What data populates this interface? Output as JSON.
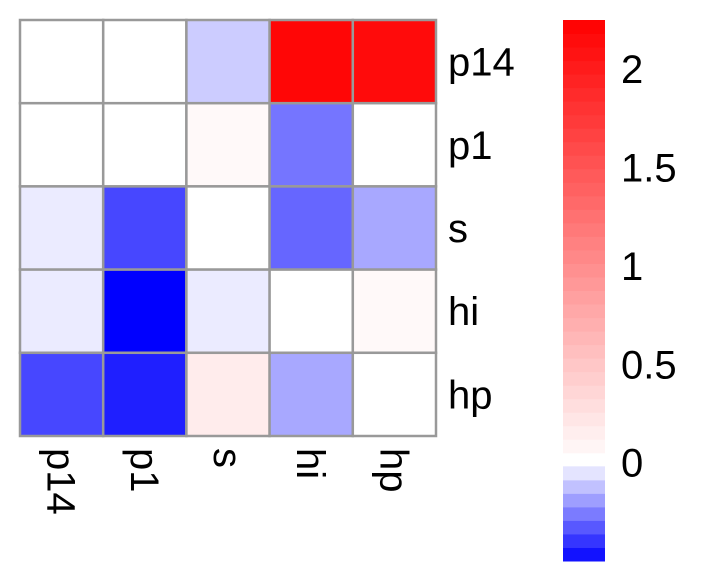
{
  "chart_data": {
    "type": "heatmap",
    "title": "",
    "xlabel": "",
    "ylabel": "",
    "rows": [
      "p14",
      "p1",
      "s",
      "hi",
      "hp"
    ],
    "columns": [
      "p14",
      "p1",
      "s",
      "hi",
      "hp"
    ],
    "values": [
      [
        0.0,
        0.0,
        -0.1,
        2.2,
        2.15
      ],
      [
        0.0,
        0.0,
        0.05,
        -0.27,
        0.0
      ],
      [
        -0.04,
        -0.36,
        0.0,
        -0.3,
        -0.17
      ],
      [
        -0.04,
        -0.5,
        -0.04,
        0.0,
        0.05
      ],
      [
        -0.36,
        -0.44,
        0.17,
        -0.17,
        0.0
      ]
    ],
    "legend": {
      "placement": "right",
      "ticks": [
        "2",
        "1.5",
        "1",
        "0.5",
        "0"
      ],
      "tick_values": [
        2,
        1.5,
        1,
        0.5,
        0
      ],
      "range": [
        -0.5,
        2.25
      ]
    },
    "colors": {
      "negative": "#0000ff",
      "zero": "#ffffff",
      "positive": "#ff0000",
      "grid": "#999999"
    }
  }
}
